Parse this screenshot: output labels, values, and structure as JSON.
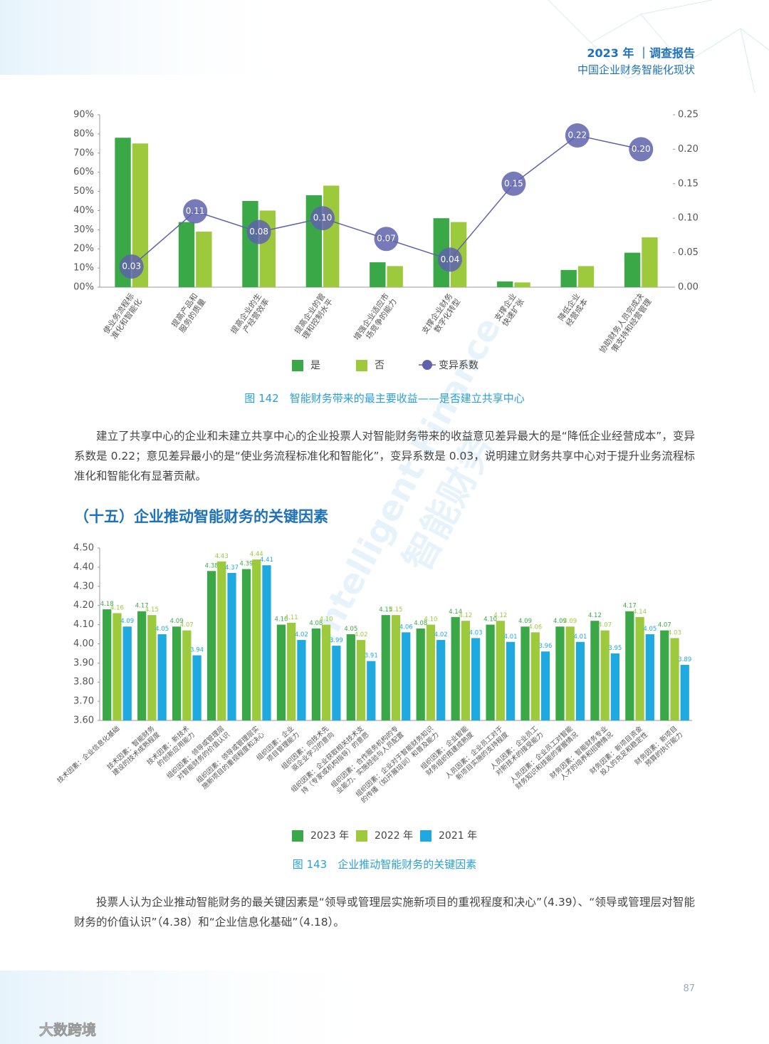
{
  "header": {
    "title": "2023 年 ｜调查报告",
    "subtitle": "中国企业财务智能化现状"
  },
  "watermark": {
    "en": "Intelligent Finance",
    "cn": "智能财务"
  },
  "paragraphs": [
    "建立了共享中心的企业和未建立共享中心的企业投票人对智能财务带来的收益意见差异最大的是“降低企业经营成本”，变异系数是 0.22；意见差异最小的是“使业务流程标准化和智能化”，变异系数是 0.03，说明建立财务共享中心对于提升业务流程标准化和智能化有显著贡献。",
    "投票人认为企业推动智能财务的最关键因素是“领导或管理层实施新项目的重视程度和决心”（4.39）、“领导或管理层对智能财务的价值认识”（4.38）和“企业信息化基础”（4.18）。"
  ],
  "section_heading": "（十五）企业推动智能财务的关键因素",
  "page_number": "87",
  "logo": "大数跨境",
  "chart_data": [
    {
      "type": "bar",
      "title": "图 142　智能财务带来的最主要收益——是否建立共享中心",
      "categories": [
        "使业务流程标准化和智能化",
        "提高产品和服务的质量",
        "提高企业的生产经营效率",
        "提高企业的管理和控制水平",
        "增强企业适应市场竞争的能力",
        "支撑企业财务数字化转型",
        "支撑企业快速扩张",
        "降低企业经营成本",
        "协助财务人员完成决策支持和经营管理"
      ],
      "series": [
        {
          "name": "是",
          "color": "#3aa847",
          "values": [
            78,
            34,
            45,
            48,
            13,
            36,
            3,
            9,
            18
          ]
        },
        {
          "name": "否",
          "color": "#9dc93c",
          "values": [
            75,
            29,
            40,
            53,
            11,
            34,
            2.5,
            11,
            26
          ]
        },
        {
          "name": "变异系数",
          "color": "#5f63ad",
          "type": "line",
          "axis": "y2",
          "values": [
            0.03,
            0.11,
            0.08,
            0.1,
            0.07,
            0.04,
            0.15,
            0.22,
            0.2
          ],
          "value_labels": [
            "0.03",
            "0.11",
            "0.08",
            "0.10",
            "0.07",
            "0.04",
            "0.15",
            "0.22",
            "0.20"
          ]
        }
      ],
      "ylim": [
        0,
        90
      ],
      "yticks": [
        {
          "value": 0,
          "label": "00%"
        },
        {
          "value": 10,
          "label": "10%"
        },
        {
          "value": 20,
          "label": "20%"
        },
        {
          "value": 30,
          "label": "30%"
        },
        {
          "value": 40,
          "label": "40%"
        },
        {
          "value": 50,
          "label": "50%"
        },
        {
          "value": 60,
          "label": "60%"
        },
        {
          "value": 70,
          "label": "70%"
        },
        {
          "value": 80,
          "label": "80%"
        },
        {
          "value": 90,
          "label": "90%"
        }
      ],
      "y2lim": [
        0,
        0.25
      ],
      "y2ticks": [
        {
          "value": 0,
          "label": "0.00"
        },
        {
          "value": 0.05,
          "label": "0.05"
        },
        {
          "value": 0.1,
          "label": "0.10"
        },
        {
          "value": 0.15,
          "label": "0.15"
        },
        {
          "value": 0.2,
          "label": "0.20"
        },
        {
          "value": 0.25,
          "label": "0.25"
        }
      ],
      "legend": "bottom"
    },
    {
      "type": "bar",
      "title": "图 143　企业推动智能财务的关键因素",
      "categories": [
        "技术因素：企业信息化基础",
        "技术因素：智能财务建设的技术成熟程度",
        "技术因素：新技术的创新应用能力",
        "组织因素：领导或管理层对智能财务的价值认识",
        "组织因素：领导或管理层实施新项目的重视程度和决心",
        "组织因素：企业项目管理能力",
        "组织因素：向技术先驱企业学习的意向",
        "组织因素：企业获取相关技术支持（专家或机构指导）的意愿",
        "组织因素：合作服务机构的专业能力、实施经验与人员配置",
        "组织因素：企业对于智能财务知识的传播（如开展培训）和普及能力",
        "组织因素：企业智能财务组织搭建成熟度",
        "人员因素：企业员工对于新项目实施的支持程度",
        "人员因素：企业员工对新技术的接受能力",
        "人员因素：企业员工对智能财务知识和技能的掌握情况",
        "财务因素：智能财务专业人才的培养和招聘情况",
        "财务因素：新项目资金投入的充足和稳定性",
        "财务因素：新项目预算的执行能力"
      ],
      "series": [
        {
          "name": "2023 年",
          "color": "#3aa847",
          "values": [
            4.18,
            4.17,
            4.09,
            4.38,
            4.39,
            4.1,
            4.08,
            4.05,
            4.15,
            4.08,
            4.14,
            4.1,
            4.09,
            4.09,
            4.12,
            4.17,
            4.07
          ],
          "value_labels": [
            "4.18",
            "4.17",
            "4.09",
            "4.38",
            "4.39",
            "4.10",
            "4.08",
            "4.05",
            "4.15",
            "4.08",
            "4.14",
            "4.10",
            "4.09",
            "4.09",
            "4.12",
            "4.17",
            "4.07"
          ]
        },
        {
          "name": "2022 年",
          "color": "#9dc93c",
          "values": [
            4.16,
            4.15,
            4.07,
            4.43,
            4.44,
            4.11,
            4.1,
            4.02,
            4.15,
            4.1,
            4.12,
            4.12,
            4.06,
            4.09,
            4.07,
            4.14,
            4.03
          ],
          "value_labels": [
            "4.16",
            "4.15",
            "4.07",
            "4.43",
            "4.44",
            "4.11",
            "4.10",
            "4.02",
            "4.15",
            "4.10",
            "4.12",
            "4.12",
            "4.06",
            "4.09",
            "4.07",
            "4.14",
            "4.03"
          ]
        },
        {
          "name": "2021 年",
          "color": "#1ea9e1",
          "values": [
            4.09,
            4.05,
            3.94,
            4.37,
            4.41,
            4.02,
            3.99,
            3.91,
            4.06,
            4.02,
            4.03,
            4.01,
            3.96,
            4.01,
            3.95,
            4.05,
            3.89
          ],
          "value_labels": [
            "4.09",
            "4.05",
            "3.94",
            "4.37",
            "4.41",
            "4.02",
            "3.99",
            "3.91",
            "4.06",
            "4.02",
            "4.03",
            "4.01",
            "3.96",
            "4.01",
            "3.95",
            "4.05",
            "3.89"
          ]
        }
      ],
      "ylim": [
        3.6,
        4.5
      ],
      "yticks": [
        {
          "value": 3.6,
          "label": "3.60"
        },
        {
          "value": 3.7,
          "label": "3.70"
        },
        {
          "value": 3.8,
          "label": "3.80"
        },
        {
          "value": 3.9,
          "label": "3.90"
        },
        {
          "value": 4,
          "label": "4.00"
        },
        {
          "value": 4.1,
          "label": "4.10"
        },
        {
          "value": 4.2,
          "label": "4.20"
        },
        {
          "value": 4.3,
          "label": "4.30"
        },
        {
          "value": 4.4,
          "label": "4.40"
        },
        {
          "value": 4.5,
          "label": "4.50"
        }
      ],
      "legend": "bottom"
    }
  ]
}
